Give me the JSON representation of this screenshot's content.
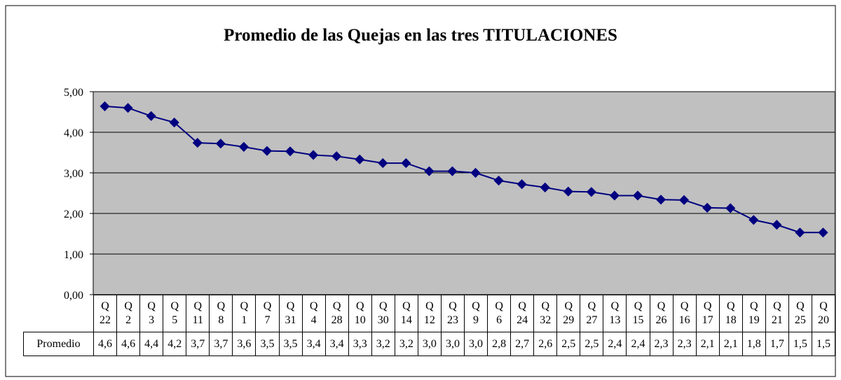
{
  "chart_data": {
    "type": "line",
    "title": "Promedio de las Quejas en las tres TITULACIONES",
    "categories": [
      "Q 22",
      "Q 2",
      "Q 3",
      "Q 5",
      "Q 11",
      "Q 8",
      "Q 1",
      "Q 7",
      "Q 31",
      "Q 4",
      "Q 28",
      "Q 10",
      "Q 30",
      "Q 14",
      "Q 12",
      "Q 23",
      "Q 9",
      "Q 6",
      "Q 24",
      "Q 32",
      "Q 29",
      "Q 27",
      "Q 13",
      "Q 15",
      "Q 26",
      "Q 16",
      "Q 17",
      "Q 18",
      "Q 19",
      "Q 21",
      "Q 25",
      "Q 20"
    ],
    "series": [
      {
        "name": "Promedio",
        "color": "#000080",
        "values": [
          4.64,
          4.6,
          4.4,
          4.24,
          3.74,
          3.72,
          3.64,
          3.54,
          3.53,
          3.44,
          3.41,
          3.33,
          3.24,
          3.24,
          3.04,
          3.04,
          3.0,
          2.81,
          2.72,
          2.64,
          2.54,
          2.53,
          2.44,
          2.44,
          2.34,
          2.33,
          2.14,
          2.13,
          1.84,
          1.72,
          1.53,
          1.53
        ],
        "value_labels": [
          "4,6",
          "4,6",
          "4,4",
          "4,2",
          "3,7",
          "3,7",
          "3,6",
          "3,5",
          "3,5",
          "3,4",
          "3,4",
          "3,3",
          "3,2",
          "3,2",
          "3,0",
          "3,0",
          "3,0",
          "2,8",
          "2,7",
          "2,6",
          "2,5",
          "2,5",
          "2,4",
          "2,4",
          "2,3",
          "2,3",
          "2,1",
          "2,1",
          "1,8",
          "1,7",
          "1,5",
          "1,5"
        ]
      }
    ],
    "ylim": [
      0,
      5
    ],
    "yticks": [
      {
        "value": 0,
        "label": "0,00"
      },
      {
        "value": 1,
        "label": "1,00"
      },
      {
        "value": 2,
        "label": "2,00"
      },
      {
        "value": 3,
        "label": "3,00"
      },
      {
        "value": 4,
        "label": "4,00"
      },
      {
        "value": 5,
        "label": "5,00"
      }
    ],
    "grid": true,
    "plot_background": "#c0c0c0"
  }
}
